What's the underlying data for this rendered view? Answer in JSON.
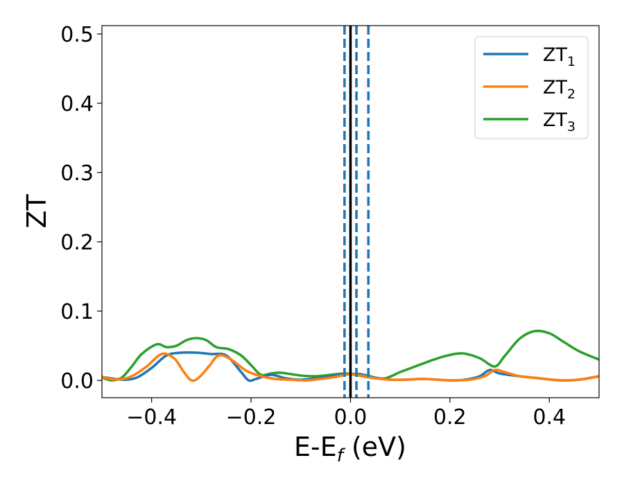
{
  "chart_data": {
    "type": "line",
    "xlabel": "E-E",
    "xlabel_sub": "f",
    "xlabel_suffix": " (eV)",
    "ylabel": "ZT",
    "xlim": [
      -0.5,
      0.5
    ],
    "ylim": [
      -0.025,
      0.512
    ],
    "xticks": [
      -0.4,
      -0.2,
      0.0,
      0.2,
      0.4
    ],
    "xtick_labels": [
      "−0.4",
      "−0.2",
      "0.0",
      "0.2",
      "0.4"
    ],
    "yticks": [
      0.0,
      0.1,
      0.2,
      0.3,
      0.4,
      0.5
    ],
    "ytick_labels": [
      "0.0",
      "0.1",
      "0.2",
      "0.3",
      "0.4",
      "0.5"
    ],
    "grid": false,
    "legend_position": "top-right",
    "vertical_lines": [
      {
        "x": 0.0,
        "style": "solid",
        "color": "#000000"
      },
      {
        "x": -0.012,
        "style": "dashed",
        "color": "#1f77b4"
      },
      {
        "x": 0.012,
        "style": "dashed",
        "color": "#1f77b4"
      },
      {
        "x": 0.036,
        "style": "dashed",
        "color": "#1f77b4"
      }
    ],
    "series": [
      {
        "name": "ZT",
        "name_sub": "1",
        "color": "#1f77b4",
        "x": [
          -0.5,
          -0.46,
          -0.43,
          -0.4,
          -0.37,
          -0.34,
          -0.31,
          -0.28,
          -0.25,
          -0.22,
          -0.205,
          -0.19,
          -0.16,
          -0.13,
          -0.1,
          -0.07,
          -0.04,
          -0.01,
          0.02,
          0.05,
          0.08,
          0.11,
          0.15,
          0.2,
          0.23,
          0.26,
          0.28,
          0.3,
          0.34,
          0.38,
          0.42,
          0.46,
          0.5
        ],
        "y": [
          0.005,
          0.001,
          0.004,
          0.018,
          0.036,
          0.04,
          0.04,
          0.038,
          0.036,
          0.012,
          0.0,
          0.002,
          0.008,
          0.003,
          0.001,
          0.003,
          0.006,
          0.009,
          0.009,
          0.004,
          0.001,
          0.001,
          0.002,
          0.0,
          0.001,
          0.006,
          0.015,
          0.01,
          0.006,
          0.003,
          0.0,
          0.001,
          0.006
        ]
      },
      {
        "name": "ZT",
        "name_sub": "2",
        "color": "#ff7f0e",
        "x": [
          -0.5,
          -0.47,
          -0.44,
          -0.41,
          -0.38,
          -0.355,
          -0.335,
          -0.32,
          -0.305,
          -0.285,
          -0.265,
          -0.24,
          -0.21,
          -0.18,
          -0.15,
          -0.12,
          -0.09,
          -0.06,
          -0.03,
          0.0,
          0.02,
          0.05,
          0.08,
          0.11,
          0.15,
          0.2,
          0.24,
          0.27,
          0.29,
          0.31,
          0.34,
          0.38,
          0.43,
          0.47,
          0.5
        ],
        "y": [
          0.005,
          0.001,
          0.006,
          0.02,
          0.038,
          0.032,
          0.012,
          0.0,
          0.004,
          0.02,
          0.036,
          0.03,
          0.014,
          0.006,
          0.002,
          0.001,
          0.0,
          0.002,
          0.005,
          0.009,
          0.007,
          0.003,
          0.001,
          0.001,
          0.002,
          0.0,
          0.001,
          0.006,
          0.015,
          0.012,
          0.006,
          0.003,
          0.0,
          0.002,
          0.006
        ]
      },
      {
        "name": "ZT",
        "name_sub": "3",
        "color": "#2ca02c",
        "x": [
          -0.5,
          -0.48,
          -0.46,
          -0.44,
          -0.42,
          -0.39,
          -0.37,
          -0.35,
          -0.33,
          -0.31,
          -0.29,
          -0.27,
          -0.245,
          -0.22,
          -0.2,
          -0.18,
          -0.16,
          -0.14,
          -0.1,
          -0.07,
          -0.04,
          -0.01,
          0.01,
          0.04,
          0.07,
          0.1,
          0.13,
          0.16,
          0.19,
          0.225,
          0.26,
          0.29,
          0.31,
          0.34,
          0.37,
          0.4,
          0.43,
          0.46,
          0.5
        ],
        "y": [
          0.004,
          0.0,
          0.004,
          0.02,
          0.038,
          0.052,
          0.048,
          0.05,
          0.058,
          0.061,
          0.058,
          0.048,
          0.045,
          0.036,
          0.022,
          0.008,
          0.01,
          0.011,
          0.007,
          0.006,
          0.008,
          0.01,
          0.008,
          0.004,
          0.003,
          0.012,
          0.02,
          0.028,
          0.035,
          0.039,
          0.032,
          0.02,
          0.035,
          0.06,
          0.071,
          0.068,
          0.055,
          0.042,
          0.03
        ]
      }
    ]
  }
}
